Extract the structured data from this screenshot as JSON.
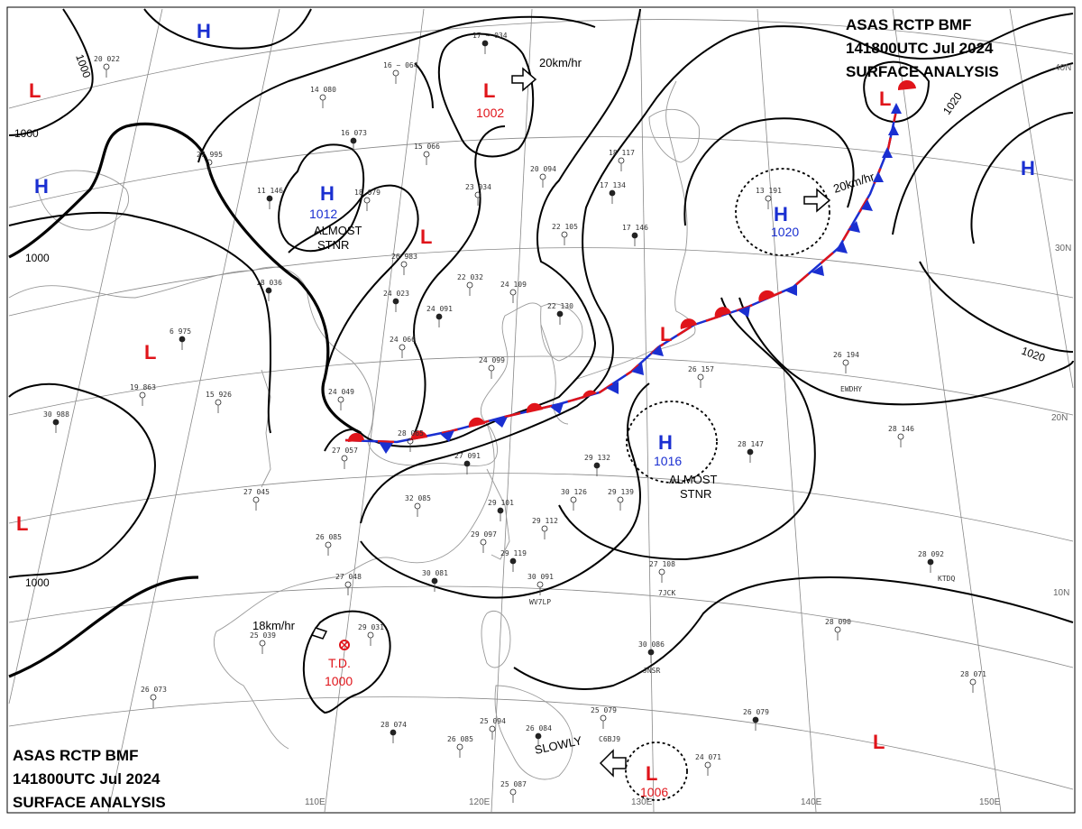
{
  "header": {
    "line1": "ASAS     RCTP     BMF",
    "line2": "141800UTC     Jul     2024",
    "line3": "SURFACE  ANALYSIS"
  },
  "systems": [
    {
      "type": "H",
      "pressure": ""
    },
    {
      "type": "L",
      "pressure": ""
    },
    {
      "type": "L",
      "pressure": "1002"
    },
    {
      "type": "H",
      "pressure": "1012"
    },
    {
      "type": "H",
      "pressure": ""
    },
    {
      "type": "L",
      "pressure": ""
    },
    {
      "type": "L",
      "pressure": ""
    },
    {
      "type": "H",
      "pressure": "1020"
    },
    {
      "type": "H",
      "pressure": ""
    },
    {
      "type": "L",
      "pressure": ""
    },
    {
      "type": "L",
      "pressure": ""
    },
    {
      "type": "H",
      "pressure": "1016"
    },
    {
      "type": "L",
      "pressure": ""
    },
    {
      "type": "L",
      "pressure": "1006"
    },
    {
      "type": "L",
      "pressure": ""
    }
  ],
  "td": {
    "label": "T.D.",
    "pressure": "1000"
  },
  "isobar_labels": [
    "1000",
    "1000",
    "1000",
    "1000",
    "1020",
    "1020"
  ],
  "notes": {
    "almost_stnr_1": "ALMOST",
    "almost_stnr_1b": "STNR",
    "almost_stnr_2": "ALMOST",
    "almost_stnr_2b": "STNR",
    "slowly": "SLOWLY"
  },
  "motions": [
    {
      "speed": "20km/hr"
    },
    {
      "speed": "20km/hr"
    },
    {
      "speed": "18km/hr"
    }
  ],
  "lat_labels": [
    "40N",
    "30N",
    "20N",
    "10N"
  ],
  "lon_labels": [
    "110E",
    "120E",
    "130E",
    "140E",
    "150E"
  ],
  "stations": [
    "17 ~ 034",
    "16 ~ 064",
    "14  080",
    "16  073",
    "15  066",
    "18  079",
    "11  146",
    "20  094",
    "23  034",
    "17  134",
    "18  117",
    "22  105",
    "17  146",
    "13  191",
    "26  983",
    "24  023",
    "22  032",
    "24  109",
    "24  091",
    "24  099",
    "24  066",
    "22  130",
    "24  049",
    "28  065",
    "27  091",
    "26  157",
    "26  194",
    "29  132",
    "30  126",
    "29  139",
    "28  147",
    "28  146",
    "32  085",
    "29  101",
    "29  112",
    "29  097",
    "29  119",
    "30  091",
    "27  108",
    "28  092",
    "26  085",
    "27  048",
    "30  081",
    "25  039",
    "29  031",
    "30  086",
    "28  090",
    "28  071",
    "26  079",
    "25  079",
    "26  073",
    "28  074",
    "26  085",
    "25  094",
    "26  084",
    "25  087",
    "24  071",
    "30  988",
    "19  863",
    "15  926",
    "6  975",
    "27  995",
    "20  022",
    "18  036",
    "27  045",
    "27  057"
  ],
  "ship_ids": [
    "EWDHY",
    "KTDQ",
    "7JCK",
    "WV7LP",
    "JNSR",
    "C6BJ9"
  ],
  "colors": {
    "high": "#1a2fd1",
    "low": "#e0141a",
    "front_warm": "#e0141a",
    "front_cold": "#1a2fd1"
  }
}
